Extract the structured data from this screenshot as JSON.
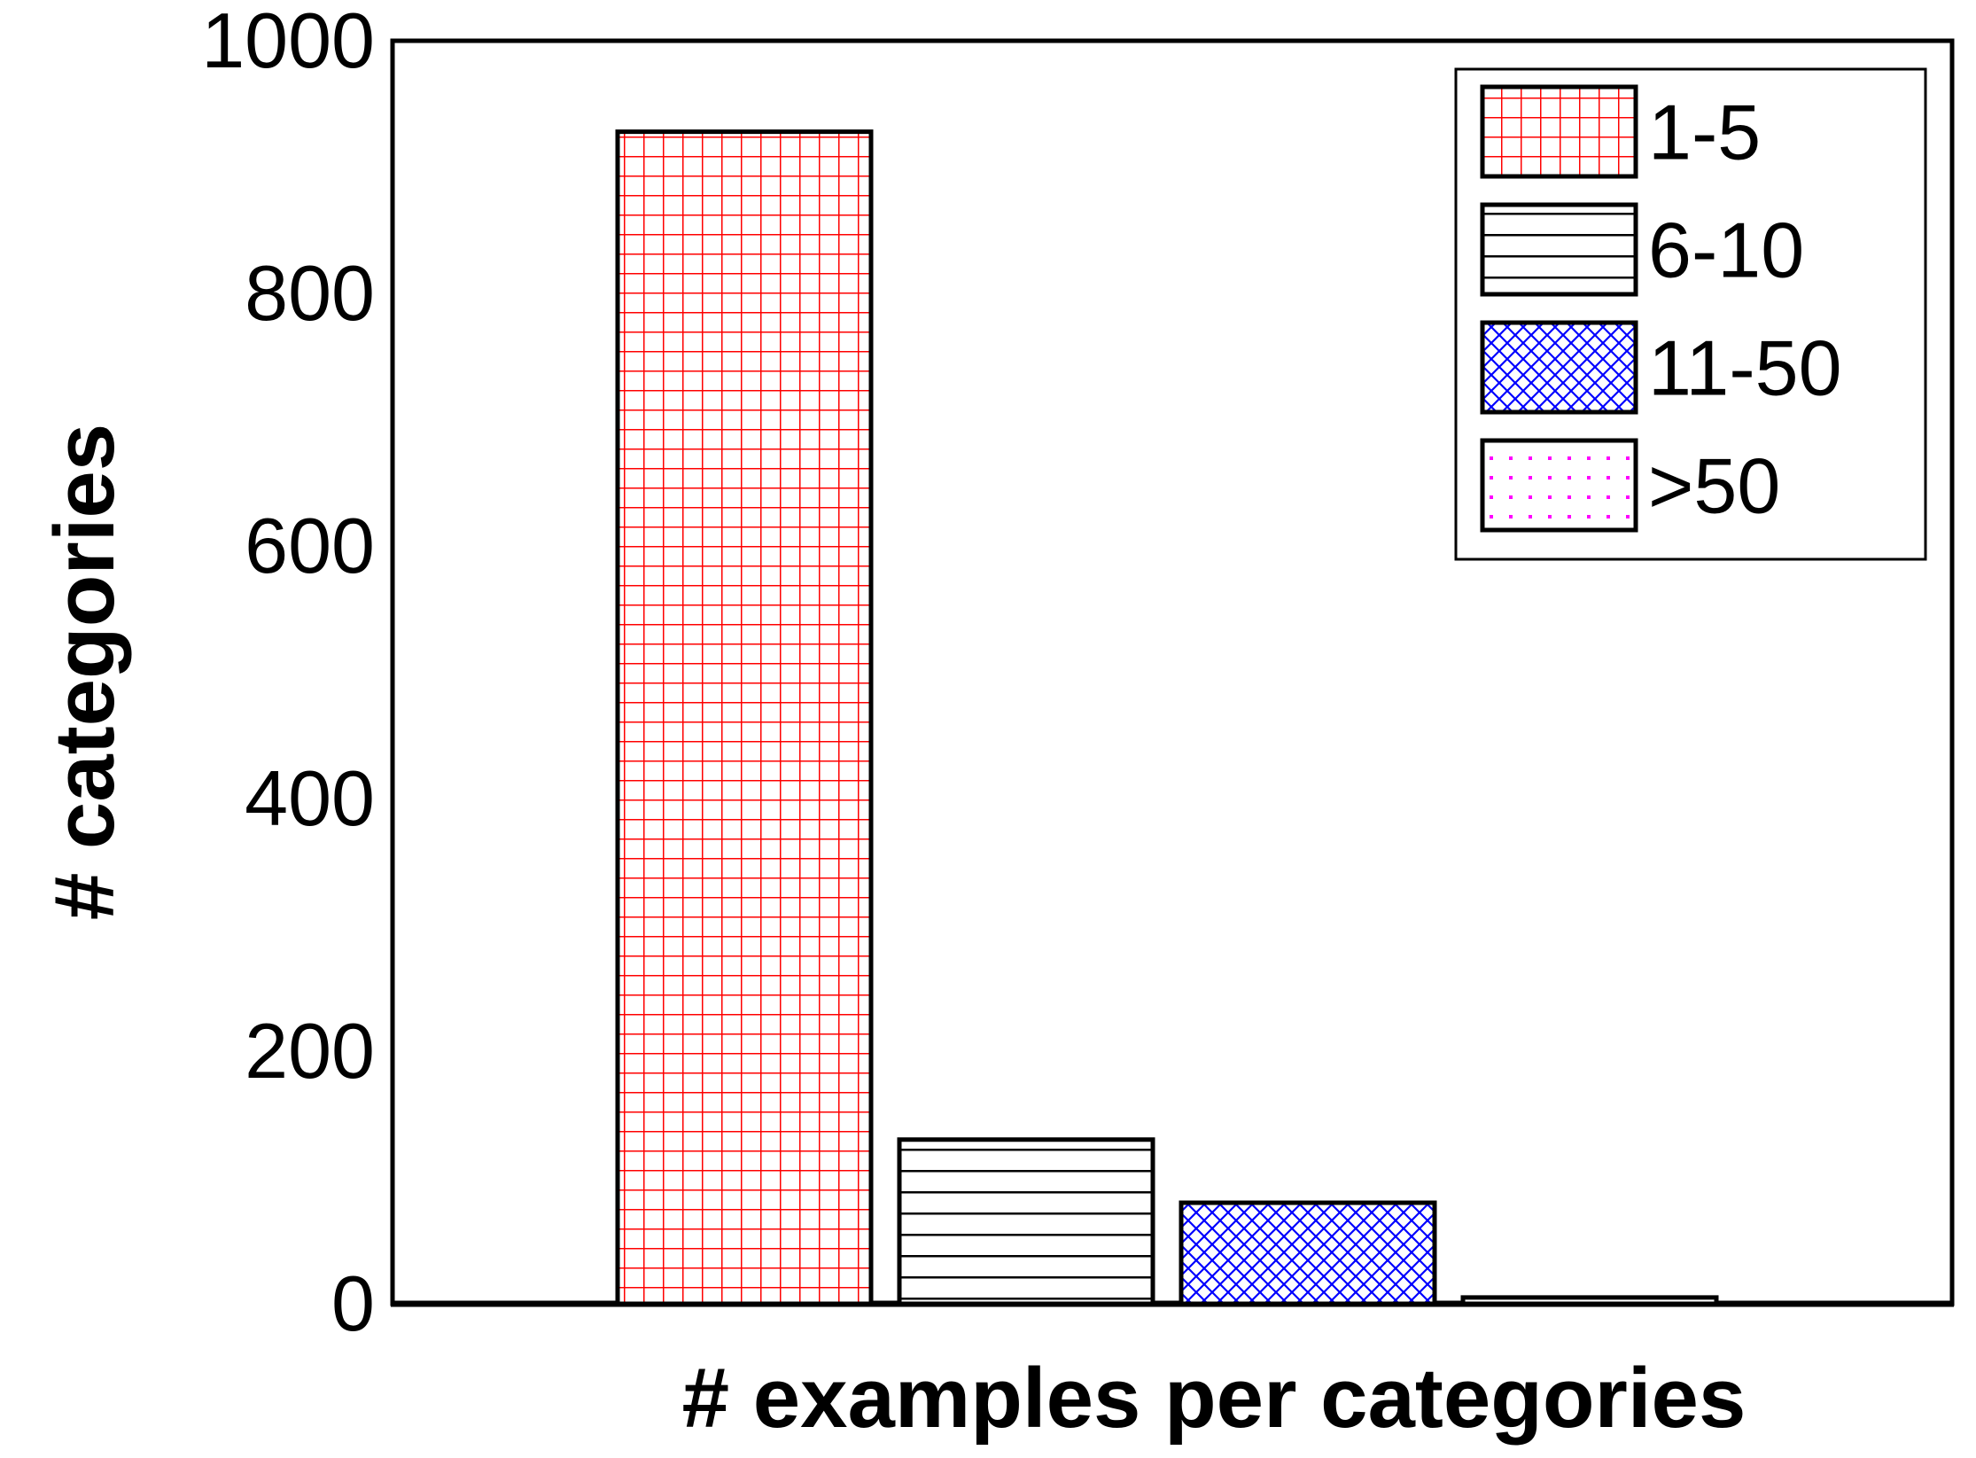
{
  "chart_data": {
    "type": "bar",
    "xlabel": "# examples per categories",
    "ylabel": "# categories",
    "ylim": [
      0,
      1000
    ],
    "yticks": [
      0,
      200,
      400,
      600,
      800,
      1000
    ],
    "grid": false,
    "legend_position": "top-right",
    "series": [
      {
        "name": "1-5",
        "value": 928,
        "color": "#ff0000",
        "pattern": "grid"
      },
      {
        "name": "6-10",
        "value": 130,
        "color": "#000000",
        "pattern": "horizontal-lines"
      },
      {
        "name": "11-50",
        "value": 80,
        "color": "#0000ff",
        "pattern": "crosshatch"
      },
      {
        "name": ">50",
        "value": 5,
        "color": "#ff00ff",
        "pattern": "dots"
      }
    ]
  }
}
